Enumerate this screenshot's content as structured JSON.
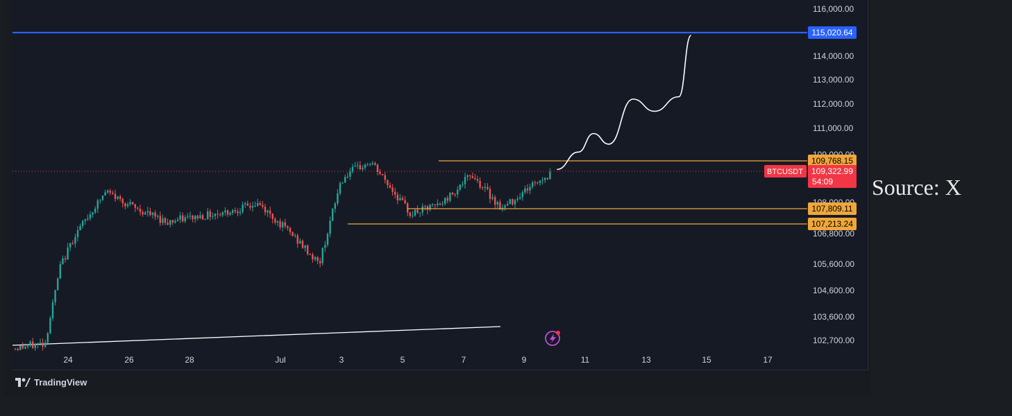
{
  "source_note": "Source: X",
  "brand": "TradingView",
  "colors": {
    "background": "#161a25",
    "up_candle": "#26a69a",
    "down_candle": "#ef5350",
    "resistance_line": "#2962ff",
    "level_line": "#f0a73a",
    "price_tag": "#f23645",
    "trend_line": "#ffffff",
    "projection": "#ffffff"
  },
  "chart_data": {
    "type": "candlestick",
    "symbol": "BTCUSDT",
    "title": "",
    "xlabel": "",
    "ylabel": "",
    "x_tick_labels": [
      "24",
      "26",
      "28",
      "Jul",
      "3",
      "5",
      "7",
      "9",
      "11",
      "13",
      "15",
      "17"
    ],
    "y_tick_labels": [
      "116,000.00",
      "114,000.00",
      "113,000.00",
      "112,000.00",
      "111,000.00",
      "109,000.00",
      "108,000.00",
      "106,800.00",
      "105,600.00",
      "104,600.00",
      "103,600.00",
      "102,700.00"
    ],
    "levels": [
      {
        "name": "resistance",
        "value": 115020.64,
        "label": "115,020.64",
        "color": "#2962ff"
      },
      {
        "name": "range-high",
        "value": 109768.15,
        "label": "109,768.15",
        "color": "#f0a73a"
      },
      {
        "name": "range-mid",
        "value": 107809.11,
        "label": "107,809.11",
        "color": "#f0a73a"
      },
      {
        "name": "range-low",
        "value": 107213.24,
        "label": "107,213.24",
        "color": "#f0a73a"
      }
    ],
    "last_price": {
      "symbol": "BTCUSDT",
      "value": 109322.99,
      "label": "109,322.99",
      "countdown": "54:09"
    },
    "price_series_approx": [
      {
        "x": "Jun 22",
        "y": 102400
      },
      {
        "x": "Jun 23",
        "y": 102600
      },
      {
        "x": "Jun 23.5",
        "y": 105500
      },
      {
        "x": "Jun 24",
        "y": 106800
      },
      {
        "x": "Jun 25",
        "y": 108500
      },
      {
        "x": "Jun 26",
        "y": 107800
      },
      {
        "x": "Jun 27",
        "y": 107300
      },
      {
        "x": "Jun 28",
        "y": 107500
      },
      {
        "x": "Jun 29",
        "y": 107700
      },
      {
        "x": "Jun 30",
        "y": 108000
      },
      {
        "x": "Jul 1",
        "y": 106900
      },
      {
        "x": "Jul 2",
        "y": 105600
      },
      {
        "x": "Jul 2.7",
        "y": 108900
      },
      {
        "x": "Jul 3",
        "y": 109300
      },
      {
        "x": "Jul 3.7",
        "y": 109700
      },
      {
        "x": "Jul 4",
        "y": 109200
      },
      {
        "x": "Jul 5",
        "y": 107600
      },
      {
        "x": "Jul 6",
        "y": 108000
      },
      {
        "x": "Jul 7",
        "y": 109200
      },
      {
        "x": "Jul 8",
        "y": 107800
      },
      {
        "x": "Jul 9",
        "y": 108800
      },
      {
        "x": "Jul 9.8",
        "y": 109323
      }
    ],
    "projection_approx": [
      {
        "x": "Jul 9.8",
        "y": 109400
      },
      {
        "x": "Jul 10.5",
        "y": 110100
      },
      {
        "x": "Jul 11",
        "y": 110800
      },
      {
        "x": "Jul 11.5",
        "y": 110400
      },
      {
        "x": "Jul 12.3",
        "y": 112200
      },
      {
        "x": "Jul 13",
        "y": 111700
      },
      {
        "x": "Jul 13.8",
        "y": 112300
      },
      {
        "x": "Jul 14.2",
        "y": 114900
      }
    ]
  }
}
